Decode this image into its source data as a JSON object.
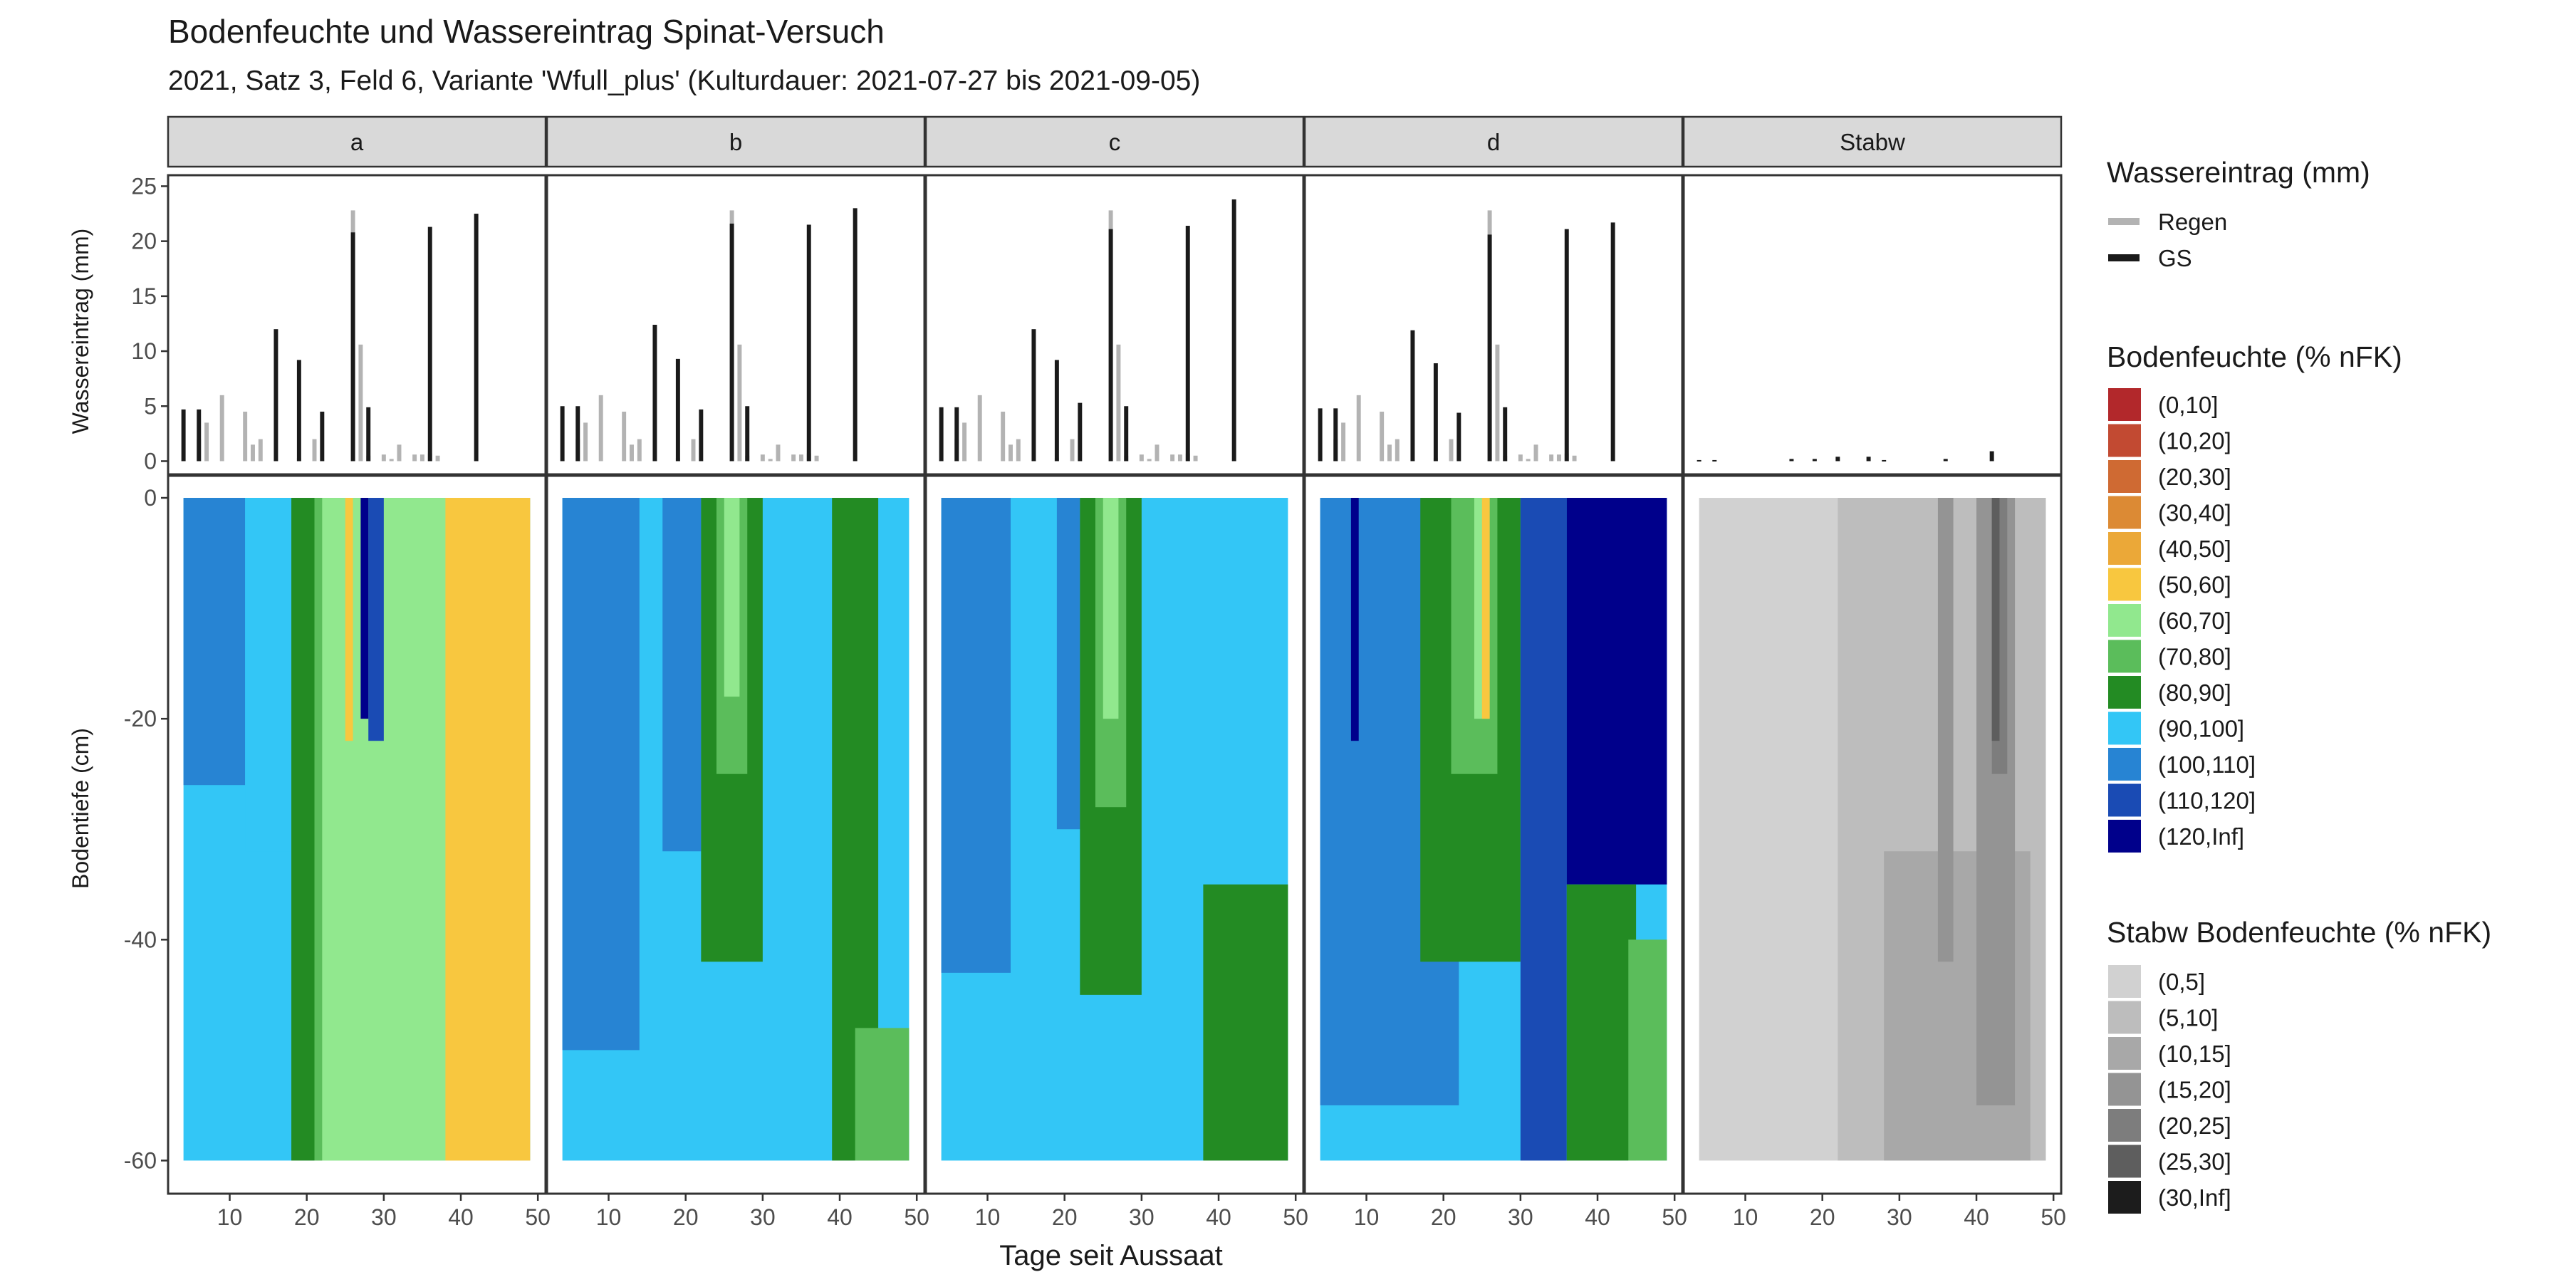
{
  "chart_data": {
    "type": "area",
    "title": "Bodenfeuchte und Wassereintrag Spinat-Versuch",
    "subtitle": "2021, Satz 3, Feld 6, Variante 'Wfull_plus' (Kulturdauer: 2021-07-27 bis 2021-09-05)",
    "xlabel": "Tage seit Aussaat",
    "top_ylabel": "Wassereintrag (mm)",
    "bottom_ylabel": "Bodentiefe (cm)",
    "x_ticks": [
      "10",
      "20",
      "30",
      "40",
      "50"
    ],
    "x_tick_values": [
      10,
      20,
      30,
      40,
      50
    ],
    "xlim": [
      2,
      51
    ],
    "top_y_ticks": [
      "0",
      "5",
      "10",
      "15",
      "20",
      "25"
    ],
    "top_y_tick_values": [
      0,
      5,
      10,
      15,
      20,
      25
    ],
    "top_ylim": [
      -1.2,
      26
    ],
    "bottom_y_ticks": [
      "0",
      "-20",
      "-40",
      "-60"
    ],
    "bottom_y_tick_values": [
      0,
      -20,
      -40,
      -60
    ],
    "bottom_ylim": [
      -63,
      2
    ],
    "panels": [
      "a",
      "b",
      "c",
      "d",
      "Stabw"
    ],
    "legend_input": {
      "title": "Wassereintrag (mm)",
      "items": [
        {
          "label": "Regen",
          "color": "#b3b3b3"
        },
        {
          "label": "GS",
          "color": "#1a1a1a"
        }
      ]
    },
    "legend_moisture": {
      "title": "Bodenfeuchte (% nFK)",
      "items": [
        {
          "label": "(0,10]",
          "color": "#b2282b"
        },
        {
          "label": "(10,20]",
          "color": "#c24a32"
        },
        {
          "label": "(20,30]",
          "color": "#cf6a33"
        },
        {
          "label": "(30,40]",
          "color": "#dc8a34"
        },
        {
          "label": "(40,50]",
          "color": "#eba838"
        },
        {
          "label": "(50,60]",
          "color": "#f8c73f"
        },
        {
          "label": "(60,70]",
          "color": "#91e88e"
        },
        {
          "label": "(70,80]",
          "color": "#5bbd5b"
        },
        {
          "label": "(80,90]",
          "color": "#238b23"
        },
        {
          "label": "(90,100]",
          "color": "#33c6f6"
        },
        {
          "label": "(100,110]",
          "color": "#2784d3"
        },
        {
          "label": "(110,120]",
          "color": "#1a4bb4"
        },
        {
          "label": "(120,Inf]",
          "color": "#00008b"
        }
      ]
    },
    "legend_sd": {
      "title": "Stabw Bodenfeuchte (% nFK)",
      "items": [
        {
          "label": "(0,5]",
          "color": "#d1d1d1"
        },
        {
          "label": "(5,10]",
          "color": "#bdbdbd"
        },
        {
          "label": "(10,15]",
          "color": "#a8a8a8"
        },
        {
          "label": "(15,20]",
          "color": "#949494"
        },
        {
          "label": "(20,25]",
          "color": "#7d7d7d"
        },
        {
          "label": "(25,30]",
          "color": "#5e5e5e"
        },
        {
          "label": "(30,Inf]",
          "color": "#1c1c1c"
        }
      ]
    },
    "rain": {
      "day": [
        6,
        7,
        9,
        12,
        13,
        14,
        19,
        21,
        26,
        27,
        28,
        30,
        31,
        32,
        34,
        35,
        36,
        37
      ],
      "values": [
        2.0,
        3.5,
        6.0,
        4.5,
        1.5,
        2.0,
        0.3,
        2.0,
        22.8,
        10.6,
        0.5,
        0.6,
        0.2,
        1.5,
        0.6,
        0.6,
        0.7,
        0.5
      ]
    },
    "watering_series": [
      {
        "name": "a",
        "day": [
          4,
          6,
          16,
          19,
          22,
          26,
          28,
          36,
          42
        ],
        "values": [
          4.7,
          4.7,
          12.0,
          9.2,
          4.5,
          20.8,
          4.9,
          21.3,
          22.5
        ]
      },
      {
        "name": "b",
        "day": [
          4,
          6,
          16,
          19,
          22,
          26,
          28,
          36,
          42
        ],
        "values": [
          5.0,
          5.0,
          12.4,
          9.3,
          4.7,
          21.6,
          5.0,
          21.5,
          23.0
        ]
      },
      {
        "name": "c",
        "day": [
          4,
          6,
          16,
          19,
          22,
          26,
          28,
          36,
          42
        ],
        "values": [
          4.9,
          4.9,
          12.0,
          9.2,
          5.3,
          21.1,
          5.0,
          21.4,
          23.8
        ]
      },
      {
        "name": "d",
        "day": [
          4,
          6,
          16,
          19,
          22,
          26,
          28,
          36,
          42
        ],
        "values": [
          4.8,
          4.8,
          11.9,
          8.9,
          4.4,
          20.6,
          4.9,
          21.1,
          21.7
        ]
      },
      {
        "name": "Stabw",
        "day": [
          4,
          6,
          16,
          19,
          22,
          26,
          28,
          36,
          42
        ],
        "values": [
          0.1,
          0.1,
          0.2,
          0.2,
          0.4,
          0.4,
          0.1,
          0.2,
          0.9
        ]
      }
    ],
    "moisture_series": [
      {
        "name": "a",
        "layers": [
          {
            "x0": 4,
            "x1": 49,
            "top": 0,
            "bottom": -60,
            "class": 9
          },
          {
            "x0": 4,
            "x1": 12,
            "top": 0,
            "bottom": -26,
            "class": 10
          },
          {
            "x0": 12,
            "x1": 18,
            "top": 0,
            "bottom": -32,
            "class": 9
          },
          {
            "x0": 18,
            "x1": 37,
            "top": 0,
            "bottom": -60,
            "class": 8
          },
          {
            "x0": 21,
            "x1": 43,
            "top": 0,
            "bottom": -60,
            "class": 7
          },
          {
            "x0": 22,
            "x1": 46,
            "top": 0,
            "bottom": -60,
            "class": 6
          },
          {
            "x0": 38,
            "x1": 49,
            "top": 0,
            "bottom": -60,
            "class": 5
          },
          {
            "x0": 25,
            "x1": 26,
            "top": 0,
            "bottom": -22,
            "class": 5
          },
          {
            "x0": 28,
            "x1": 30,
            "top": 0,
            "bottom": -22,
            "class": 11
          },
          {
            "x0": 27,
            "x1": 28,
            "top": 0,
            "bottom": -20,
            "class": 12
          }
        ]
      },
      {
        "name": "b",
        "layers": [
          {
            "x0": 4,
            "x1": 49,
            "top": 0,
            "bottom": -60,
            "class": 9
          },
          {
            "x0": 4,
            "x1": 14,
            "top": 0,
            "bottom": -50,
            "class": 10
          },
          {
            "x0": 17,
            "x1": 22,
            "top": 0,
            "bottom": -32,
            "class": 10
          },
          {
            "x0": 22,
            "x1": 30,
            "top": 0,
            "bottom": -42,
            "class": 8
          },
          {
            "x0": 24,
            "x1": 28,
            "top": 0,
            "bottom": -25,
            "class": 7
          },
          {
            "x0": 25,
            "x1": 27,
            "top": 0,
            "bottom": -18,
            "class": 6
          },
          {
            "x0": 39,
            "x1": 45,
            "top": 0,
            "bottom": -60,
            "class": 8
          },
          {
            "x0": 42,
            "x1": 49,
            "top": -48,
            "bottom": -60,
            "class": 7
          }
        ]
      },
      {
        "name": "c",
        "layers": [
          {
            "x0": 4,
            "x1": 49,
            "top": 0,
            "bottom": -60,
            "class": 9
          },
          {
            "x0": 4,
            "x1": 13,
            "top": 0,
            "bottom": -43,
            "class": 10
          },
          {
            "x0": 19,
            "x1": 22,
            "top": 0,
            "bottom": -30,
            "class": 10
          },
          {
            "x0": 22,
            "x1": 30,
            "top": 0,
            "bottom": -45,
            "class": 8
          },
          {
            "x0": 24,
            "x1": 28,
            "top": 0,
            "bottom": -28,
            "class": 7
          },
          {
            "x0": 25,
            "x1": 27,
            "top": 0,
            "bottom": -20,
            "class": 6
          },
          {
            "x0": 38,
            "x1": 49,
            "top": -35,
            "bottom": -60,
            "class": 8
          }
        ]
      },
      {
        "name": "d",
        "layers": [
          {
            "x0": 4,
            "x1": 49,
            "top": 0,
            "bottom": -60,
            "class": 9
          },
          {
            "x0": 4,
            "x1": 22,
            "top": 0,
            "bottom": -55,
            "class": 10
          },
          {
            "x0": 8,
            "x1": 9,
            "top": 0,
            "bottom": -22,
            "class": 12
          },
          {
            "x0": 17,
            "x1": 30,
            "top": 0,
            "bottom": -42,
            "class": 8
          },
          {
            "x0": 21,
            "x1": 27,
            "top": 0,
            "bottom": -25,
            "class": 7
          },
          {
            "x0": 24,
            "x1": 26,
            "top": 0,
            "bottom": -20,
            "class": 6
          },
          {
            "x0": 25,
            "x1": 26,
            "top": 0,
            "bottom": -20,
            "class": 5
          },
          {
            "x0": 30,
            "x1": 36,
            "top": 0,
            "bottom": -60,
            "class": 11
          },
          {
            "x0": 36,
            "x1": 49,
            "top": 0,
            "bottom": -35,
            "class": 12
          },
          {
            "x0": 36,
            "x1": 45,
            "top": -35,
            "bottom": -60,
            "class": 8
          },
          {
            "x0": 44,
            "x1": 49,
            "top": -40,
            "bottom": -60,
            "class": 7
          }
        ]
      },
      {
        "name": "Stabw",
        "layers": [
          {
            "x0": 4,
            "x1": 49,
            "top": 0,
            "bottom": -60,
            "class": 0
          },
          {
            "x0": 22,
            "x1": 49,
            "top": 0,
            "bottom": -60,
            "class": 1
          },
          {
            "x0": 28,
            "x1": 47,
            "top": -32,
            "bottom": -60,
            "class": 2
          },
          {
            "x0": 35,
            "x1": 37,
            "top": 0,
            "bottom": -42,
            "class": 3
          },
          {
            "x0": 40,
            "x1": 45,
            "top": 0,
            "bottom": -55,
            "class": 3
          },
          {
            "x0": 42,
            "x1": 44,
            "top": 0,
            "bottom": -25,
            "class": 4
          },
          {
            "x0": 42,
            "x1": 43,
            "top": 0,
            "bottom": -22,
            "class": 5
          }
        ]
      }
    ]
  }
}
